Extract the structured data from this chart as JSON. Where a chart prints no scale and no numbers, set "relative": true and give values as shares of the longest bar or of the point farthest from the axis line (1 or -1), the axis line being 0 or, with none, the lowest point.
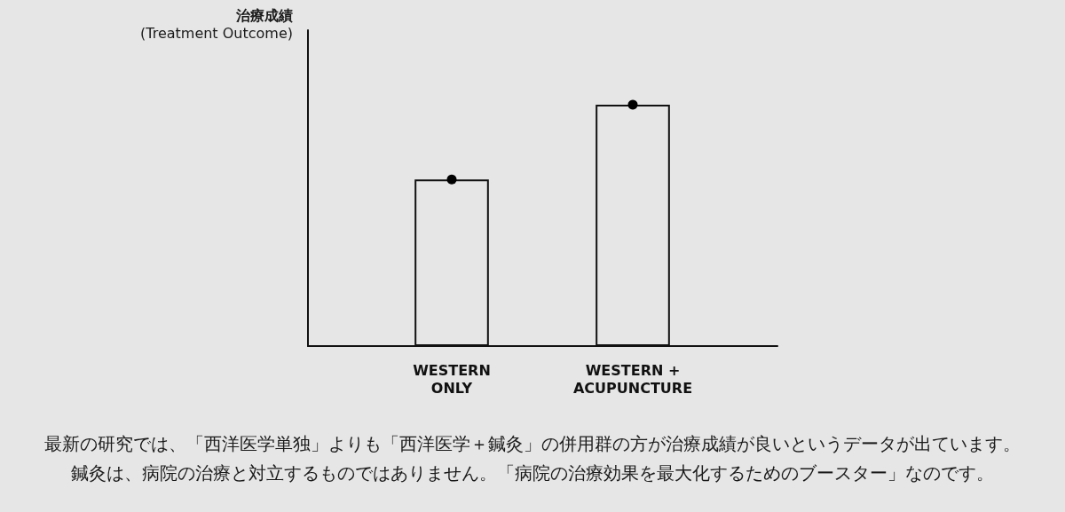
{
  "chart_data": {
    "type": "bar",
    "ylabel": "治療成績\n(Treatment Outcome)",
    "categories": [
      "WESTERN\nONLY",
      "WESTERN +\nACUPUNCTURE"
    ],
    "relative": true,
    "marker": "circle",
    "series": [
      {
        "color": "#111111",
        "values": [
          0.69,
          1
        ]
      },
      {
        "type": "scatter",
        "x": [
          "WESTERN\nONLY",
          "WESTERN +\nACUPUNCTURE"
        ],
        "color": "#000000",
        "values": [
          0.69,
          1
        ]
      }
    ],
    "annotations": [
      "最新の研究では、「西洋医学単独」よりも「西洋医学＋鍼灸」の併用群の方が治療成績が良いというデータが出ています。",
      "鍼灸は、病院の治療と対立するものではありません。「病院の治療効果を最大化するためのブースター」なのです。"
    ]
  }
}
